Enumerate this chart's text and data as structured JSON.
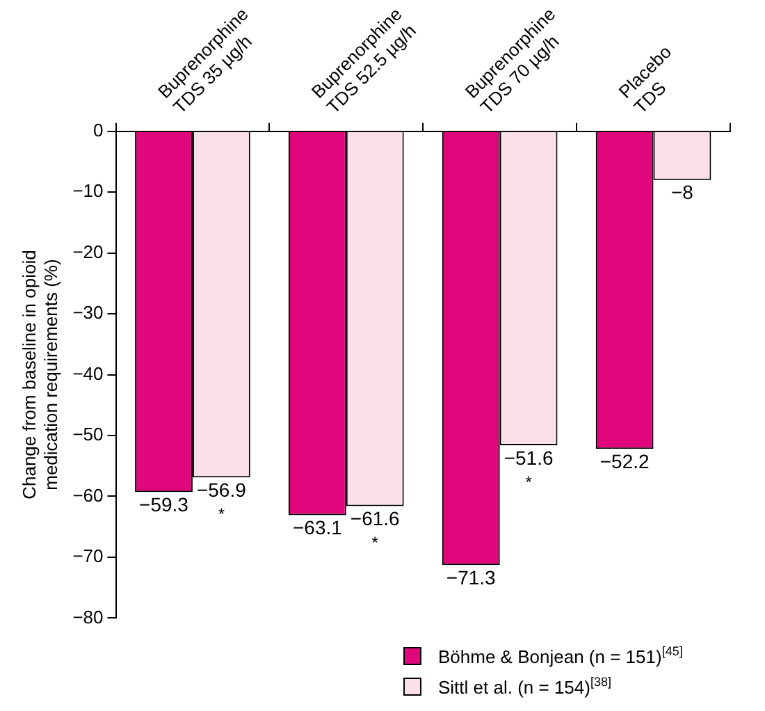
{
  "chart_data": {
    "type": "bar",
    "ylabel": "Change from baseline in opioid\nmedication requirements (%)",
    "categories": [
      "Buprenorphine\nTDS 35 µg/h",
      "Buprenorphine\nTDS 52.5 µg/h",
      "Buprenorphine\nTDS 70 µg/h",
      "Placebo\nTDS"
    ],
    "series": [
      {
        "name": "Böhme & Bonjean (n = 151)$^{[45]}$",
        "color": "#e0077d",
        "values": [
          -59.3,
          -63.1,
          -71.3,
          -52.2
        ],
        "value_labels": [
          "−59.3",
          "−63.1",
          "−71.3",
          "−52.2"
        ]
      },
      {
        "name": "Sittl et al. (n = 154)$^{[38]}$",
        "color": "#fbe0ea",
        "values": [
          -56.9,
          -61.6,
          -51.6,
          -8
        ],
        "value_labels": [
          "−56.9",
          "−61.6",
          "−51.6",
          "−8"
        ]
      }
    ],
    "ylim": [
      -80,
      0
    ],
    "yticks": [
      0,
      {
        "value": -10,
        "label": "−10"
      },
      {
        "value": -20,
        "label": "−20"
      },
      {
        "value": -30,
        "label": "−30"
      },
      {
        "value": -40,
        "label": "−40"
      },
      {
        "value": -50,
        "label": "−50"
      },
      {
        "value": -60,
        "label": "−60"
      },
      {
        "value": -70,
        "label": "−70"
      },
      {
        "value": -80,
        "label": "−80"
      }
    ],
    "annotations": [
      {
        "text": "*",
        "x": "Buprenorphine\nTDS 35 µg/h",
        "y": -56.9
      },
      {
        "text": "*",
        "x": "Buprenorphine\nTDS 52.5 µg/h",
        "y": -61.6
      },
      {
        "text": "*",
        "x": "Buprenorphine\nTDS 70 µg/h",
        "y": -51.6
      }
    ],
    "grid": false,
    "legend": "bottom right"
  }
}
